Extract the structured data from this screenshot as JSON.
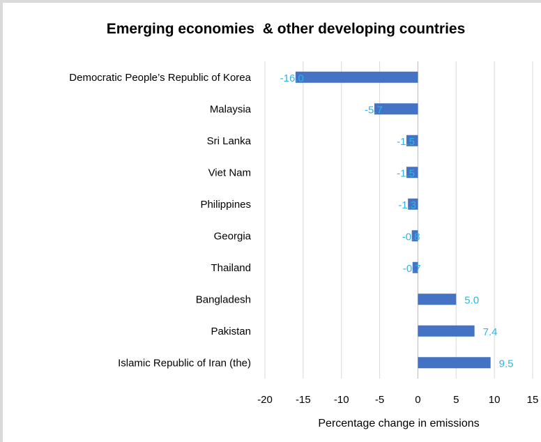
{
  "chart_data": {
    "type": "bar",
    "orientation": "horizontal",
    "title": "Emerging economies  & other developing countries",
    "xlabel": "Percentage change in emissions",
    "ylabel": "",
    "categories": [
      "Democratic People’s Republic of Korea",
      "Malaysia",
      "Sri Lanka",
      "Viet Nam",
      "Philippines",
      "Georgia",
      "Thailand",
      "Bangladesh",
      "Pakistan",
      "Islamic Republic of Iran (the)"
    ],
    "values": [
      -16.0,
      -5.7,
      -1.5,
      -1.5,
      -1.3,
      -0.8,
      -0.7,
      5.0,
      7.4,
      9.5
    ],
    "data_labels": [
      "-16.0",
      "-5.7",
      "-1.5",
      "-1.5",
      "-1.3",
      "-0.8",
      "-0.7",
      "5.0",
      "7.4",
      "9.5"
    ],
    "xlim": [
      -20,
      15
    ],
    "xticks": [
      -20,
      -15,
      -10,
      -5,
      0,
      5,
      10,
      15
    ],
    "xtick_labels": [
      "-20",
      "-15",
      "-10",
      "-5",
      "0",
      "5",
      "10",
      "15"
    ],
    "grid": "vertical",
    "legend": "none",
    "colors": {
      "bar": "#4472c4",
      "data_label": "#2eb4e6",
      "grid": "#d9d9d9"
    }
  }
}
